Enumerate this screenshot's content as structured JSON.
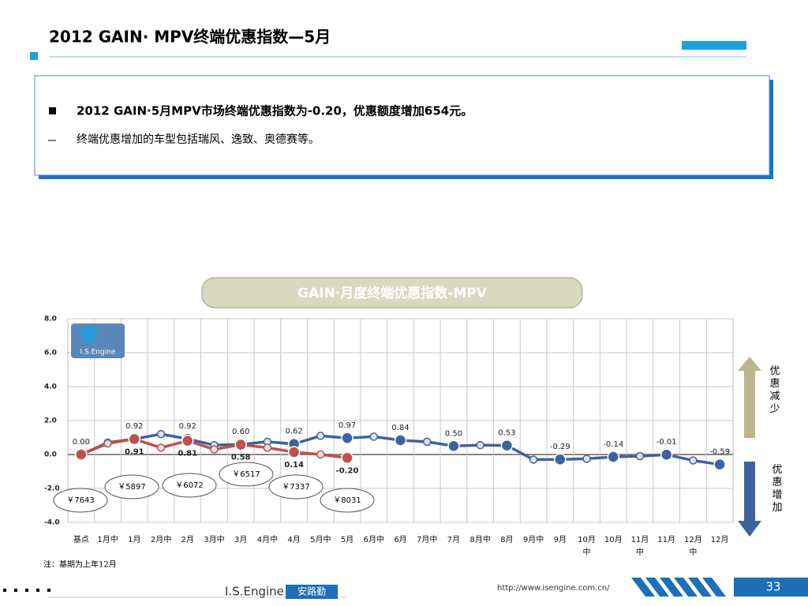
{
  "slide": {
    "title": "2012 GAIN· MPV终端优惠指数—5月",
    "bullet1": "2012 GAIN·5月MPV市场终端优惠指数为-0.20，优惠额度增加654元。",
    "bullet2": "终端优惠增加的车型包括瑞风、逸致、奥德赛等。",
    "note": "注：基期为上年12月",
    "footer_brand": "I.S.Engine",
    "footer_cn": "安路勤",
    "url": "http://www.isengine.com.cn/",
    "page": "33"
  },
  "chart_data": {
    "type": "line",
    "title": "GAIN·月度终端优惠指数-MPV",
    "logo": "I.S.Engine",
    "upper_label": "优惠减少",
    "lower_label": "优惠增加",
    "categories": [
      "基点",
      "1月中",
      "1月",
      "2月中",
      "2月",
      "3月中",
      "3月",
      "4月中",
      "4月",
      "5月中",
      "5月",
      "6月中",
      "6月",
      "7月中",
      "7月",
      "8月中",
      "8月",
      "9月中",
      "9月",
      "10月中",
      "10月",
      "11月中",
      "11月",
      "12月中",
      "12月"
    ],
    "series": [
      {
        "color": "#3d62a0",
        "values": [
          0.0,
          0.7,
          0.92,
          1.2,
          0.92,
          0.55,
          0.6,
          0.75,
          0.62,
          1.1,
          0.97,
          1.05,
          0.84,
          0.75,
          0.5,
          0.55,
          0.53,
          -0.3,
          -0.29,
          -0.25,
          -0.14,
          -0.1,
          -0.01,
          -0.35,
          -0.59
        ],
        "value_labels": [
          "0.00",
          null,
          "0.92",
          null,
          "0.92",
          null,
          "0.60",
          null,
          "0.62",
          null,
          "0.97",
          null,
          "0.84",
          null,
          "0.50",
          null,
          "0.53",
          null,
          "-0.29",
          null,
          "-0.14",
          null,
          "-0.01",
          null,
          "-0.59"
        ]
      },
      {
        "color": "#c0504d",
        "values": [
          0.0,
          0.65,
          0.91,
          0.4,
          0.81,
          0.3,
          0.58,
          0.4,
          0.14,
          0.0,
          -0.2,
          null,
          null,
          null,
          null,
          null,
          null,
          null,
          null,
          null,
          null,
          null,
          null,
          null,
          null
        ],
        "value_labels": [
          null,
          null,
          "0.91",
          null,
          "0.81",
          null,
          "0.58",
          null,
          "0.14",
          null,
          "-0.20",
          null,
          null,
          null,
          null,
          null,
          null,
          null,
          null,
          null,
          null,
          null,
          null,
          null,
          null
        ]
      }
    ],
    "annotations": [
      "￥7643",
      "￥5897",
      "￥6072",
      "￥6517",
      "￥7337",
      "￥8031"
    ],
    "ylim": [
      -4,
      8
    ],
    "yticks": [
      {
        "value": 8,
        "label": "8.0"
      },
      {
        "value": 6,
        "label": "6.0"
      },
      {
        "value": 4,
        "label": "4.0"
      },
      {
        "value": 2,
        "label": "2.0"
      },
      {
        "value": 0,
        "label": "0.0"
      },
      {
        "value": -2,
        "label": "-2.0"
      },
      {
        "value": -4,
        "label": "-4.0"
      }
    ],
    "grid": true
  }
}
